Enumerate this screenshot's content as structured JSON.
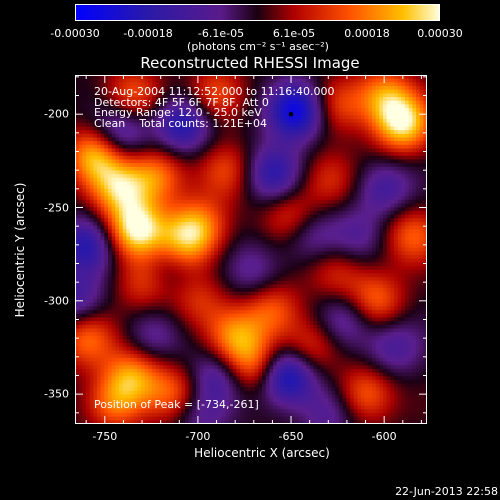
{
  "chart_data": {
    "type": "heatmap",
    "title": "Reconstructed RHESSI Image",
    "xlabel": "Heliocentric X (arcsec)",
    "ylabel": "Heliocentric Y (arcsec)",
    "xlim": [
      -766,
      -577
    ],
    "ylim": [
      -366,
      -179
    ],
    "x_ticks": [
      -750,
      -700,
      -650,
      -600
    ],
    "y_ticks": [
      -200,
      -250,
      -300,
      -350
    ],
    "colorbar": {
      "range": [
        -0.0003,
        0.0003
      ],
      "tick_labels": [
        "-0.00030",
        "-0.00018",
        "-6.1e-05",
        "6.1e-05",
        "0.00018",
        "0.00030"
      ],
      "tick_values": [
        -0.0003,
        -0.00018,
        -6.1e-05,
        6.1e-05,
        0.00018,
        0.0003
      ],
      "units": "(photons cm⁻² s⁻¹ asec⁻²)",
      "colormap": "blue-purple-red-orange-yellow-white"
    },
    "annotations": [
      "20-Aug-2004 11:12:52.000 to 11:16:40.000",
      "Detectors: 4F 5F 6F 7F 8F, Att 0",
      "Energy Range: 12.0 - 25.0 keV",
      "Clean    Total counts: 1.21E+04"
    ],
    "peak": {
      "label": "Position of Peak = [-734,-261]",
      "x": -734,
      "y": -261
    },
    "marker": {
      "x": -650,
      "y": -200
    },
    "features": [
      {
        "x": -733,
        "y": -262,
        "v": 1.0
      },
      {
        "x": -755,
        "y": -222,
        "v": 0.8
      },
      {
        "x": -742,
        "y": -240,
        "v": 0.7
      },
      {
        "x": -722,
        "y": -233,
        "v": 0.6
      },
      {
        "x": -700,
        "y": -260,
        "v": 0.6
      },
      {
        "x": -708,
        "y": -270,
        "v": 0.55
      },
      {
        "x": -728,
        "y": -290,
        "v": 0.45
      },
      {
        "x": -760,
        "y": -320,
        "v": 0.55
      },
      {
        "x": -735,
        "y": -340,
        "v": 0.65
      },
      {
        "x": -745,
        "y": -355,
        "v": 0.55
      },
      {
        "x": -712,
        "y": -350,
        "v": 0.5
      },
      {
        "x": -680,
        "y": -320,
        "v": 0.6
      },
      {
        "x": -670,
        "y": -335,
        "v": 0.55
      },
      {
        "x": -660,
        "y": -305,
        "v": 0.5
      },
      {
        "x": -640,
        "y": -325,
        "v": 0.45
      },
      {
        "x": -610,
        "y": -350,
        "v": 0.55
      },
      {
        "x": -605,
        "y": -300,
        "v": 0.55
      },
      {
        "x": -585,
        "y": -265,
        "v": 0.5
      },
      {
        "x": -590,
        "y": -205,
        "v": 0.9
      },
      {
        "x": -600,
        "y": -190,
        "v": 0.6
      },
      {
        "x": -625,
        "y": -195,
        "v": 0.45
      },
      {
        "x": -690,
        "y": -190,
        "v": 0.5
      },
      {
        "x": -735,
        "y": -190,
        "v": 0.5
      },
      {
        "x": -650,
        "y": -255,
        "v": 0.45
      },
      {
        "x": -630,
        "y": -235,
        "v": 0.35
      },
      {
        "x": -685,
        "y": -230,
        "v": 0.4
      },
      {
        "x": -700,
        "y": -300,
        "v": 0.35
      },
      {
        "x": -625,
        "y": -285,
        "v": 0.35
      },
      {
        "x": -647,
        "y": -198,
        "v": -0.95
      },
      {
        "x": -708,
        "y": -205,
        "v": -0.7
      },
      {
        "x": -742,
        "y": -210,
        "v": -0.55
      },
      {
        "x": -760,
        "y": -270,
        "v": -0.6
      },
      {
        "x": -765,
        "y": -300,
        "v": -0.45
      },
      {
        "x": -717,
        "y": -282,
        "v": -0.35
      },
      {
        "x": -660,
        "y": -232,
        "v": -0.6
      },
      {
        "x": -640,
        "y": -265,
        "v": -0.4
      },
      {
        "x": -652,
        "y": -340,
        "v": -0.85
      },
      {
        "x": -690,
        "y": -340,
        "v": -0.45
      },
      {
        "x": -620,
        "y": -310,
        "v": -0.45
      },
      {
        "x": -600,
        "y": -240,
        "v": -0.45
      },
      {
        "x": -595,
        "y": -325,
        "v": -0.4
      },
      {
        "x": -630,
        "y": -360,
        "v": -0.35
      },
      {
        "x": -700,
        "y": -360,
        "v": -0.35
      },
      {
        "x": -670,
        "y": -285,
        "v": -0.3
      },
      {
        "x": -725,
        "y": -320,
        "v": -0.3
      },
      {
        "x": -615,
        "y": -265,
        "v": -0.3
      }
    ]
  },
  "footer": {
    "timestamp": "22-Jun-2013 22:58"
  }
}
